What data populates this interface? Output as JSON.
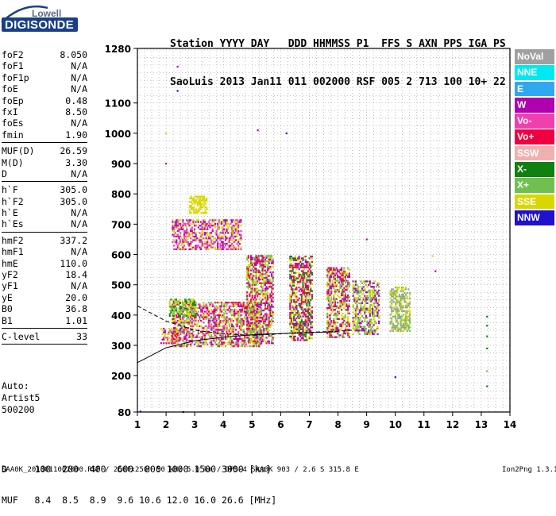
{
  "logo": {
    "brand_top": "Lowell",
    "brand_main": "DIGISONDE"
  },
  "header": {
    "row1": "Station YYYY DAY   DDD HHMMSS P1  FFS S AXN PPS IGA PS",
    "row2": "SaoLuis 2013 Jan11 011 002000 RSF 005 2 713 100 10+ 22"
  },
  "params": [
    {
      "label": "foF2",
      "value": "8.050"
    },
    {
      "label": "foF1",
      "value": "N/A"
    },
    {
      "label": "foF1p",
      "value": "N/A"
    },
    {
      "label": "foE",
      "value": "N/A"
    },
    {
      "label": "foEp",
      "value": "0.48"
    },
    {
      "label": "fxI",
      "value": "8.50"
    },
    {
      "label": "foEs",
      "value": "N/A"
    },
    {
      "label": "fmin",
      "value": "1.90"
    },
    {
      "label": "MUF(D)",
      "value": "26.59"
    },
    {
      "label": "M(D)",
      "value": "3.30"
    },
    {
      "label": "D",
      "value": "N/A"
    },
    {
      "label": "h`F",
      "value": "305.0"
    },
    {
      "label": "h`F2",
      "value": "305.0"
    },
    {
      "label": "h`E",
      "value": "N/A"
    },
    {
      "label": "h`Es",
      "value": "N/A"
    },
    {
      "label": "hmF2",
      "value": "337.2"
    },
    {
      "label": "hmF1",
      "value": "N/A"
    },
    {
      "label": "hmE",
      "value": "110.0"
    },
    {
      "label": "yF2",
      "value": "18.4"
    },
    {
      "label": "yF1",
      "value": "N/A"
    },
    {
      "label": "yE",
      "value": "20.0"
    },
    {
      "label": "B0",
      "value": "36.8"
    },
    {
      "label": "B1",
      "value": "1.01"
    },
    {
      "label": "C-level",
      "value": "33"
    }
  ],
  "auto": {
    "line1": "Auto:",
    "line2": "Artist5",
    "line3": "500200"
  },
  "bottom_table": {
    "d_row": "D     100  200  400  600  800 1000 1500 3000 [km]",
    "muf_row": "MUF   8.4  8.5  8.9  9.6 10.6 12.0 16.0 26.6 [MHz]"
  },
  "footer": {
    "left": "SAA0K_2013011002000.RSF / 260fx256h 50 kHz 5.0 km / DPS-4 SAA0K 903 / 2.6 S 315.8 E",
    "right": "Ion2Png 1.3.17"
  },
  "legend": [
    {
      "label": "NoVal",
      "color": "#a0a0a0"
    },
    {
      "label": "NNE",
      "color": "#00e8f0"
    },
    {
      "label": "E",
      "color": "#30a8f0"
    },
    {
      "label": "W",
      "color": "#b000b0"
    },
    {
      "label": "Vo-",
      "color": "#f040b0"
    },
    {
      "label": "Vo+",
      "color": "#f00040"
    },
    {
      "label": "SSW",
      "color": "#f0b0b0"
    },
    {
      "label": "X-",
      "color": "#108010"
    },
    {
      "label": "X+",
      "color": "#70c050"
    },
    {
      "label": "SSE",
      "color": "#d8d800"
    },
    {
      "label": "NNW",
      "color": "#2010d0"
    }
  ],
  "chart_data": {
    "type": "scatter",
    "title": "",
    "xlabel": "",
    "ylabel": "",
    "xlim": [
      1,
      14
    ],
    "ylim": [
      80,
      1280
    ],
    "x_ticks": [
      1,
      2,
      3,
      4,
      5,
      6,
      7,
      8,
      9,
      10,
      11,
      12,
      13,
      14
    ],
    "y_ticks": [
      80,
      200,
      300,
      400,
      500,
      600,
      700,
      800,
      900,
      1000,
      1100,
      1280
    ],
    "x_tick_labels": [
      "1",
      "2",
      "3",
      "4",
      "5",
      "6",
      "7",
      "8",
      "9",
      "10",
      "11",
      "12",
      "13",
      "14"
    ],
    "y_tick_labels": [
      "80",
      "200",
      "300",
      "400",
      "500",
      "600",
      "700",
      "800",
      "900",
      "1000",
      "1100",
      "1280"
    ],
    "grid": true,
    "legend_position": "right",
    "echo_clusters": [
      {
        "x": [
          1.8,
          2.5
        ],
        "y": [
          310,
          360
        ],
        "mix": [
          "Vo+",
          "Vo-",
          "W",
          "SSE"
        ]
      },
      {
        "x": [
          2.2,
          5.3
        ],
        "y": [
          300,
          450
        ],
        "mix": [
          "Vo+",
          "Vo-",
          "W",
          "SSE",
          "X+"
        ]
      },
      {
        "x": [
          2.1,
          3.0
        ],
        "y": [
          400,
          460
        ],
        "mix": [
          "SSE",
          "X+",
          "X-"
        ]
      },
      {
        "x": [
          2.2,
          4.6
        ],
        "y": [
          620,
          720
        ],
        "mix": [
          "W",
          "Vo-",
          "SSE"
        ]
      },
      {
        "x": [
          2.8,
          3.4
        ],
        "y": [
          740,
          800
        ],
        "mix": [
          "SSE"
        ]
      },
      {
        "x": [
          4.8,
          5.7
        ],
        "y": [
          310,
          600
        ],
        "mix": [
          "SSE",
          "Vo+",
          "W",
          "X+"
        ]
      },
      {
        "x": [
          6.3,
          7.1
        ],
        "y": [
          320,
          600
        ],
        "mix": [
          "SSE",
          "Vo+",
          "W",
          "X-"
        ]
      },
      {
        "x": [
          7.6,
          8.4
        ],
        "y": [
          330,
          560
        ],
        "mix": [
          "SSE",
          "W",
          "Vo+",
          "X+"
        ]
      },
      {
        "x": [
          8.5,
          9.4
        ],
        "y": [
          340,
          520
        ],
        "mix": [
          "SSE",
          "W",
          "X+"
        ]
      },
      {
        "x": [
          9.8,
          10.5
        ],
        "y": [
          350,
          500
        ],
        "mix": [
          "X+",
          "SSE",
          "NoVal"
        ]
      }
    ],
    "sparse_points": [
      {
        "x": 2.4,
        "y": 1220,
        "color": "W"
      },
      {
        "x": 2.4,
        "y": 1140,
        "color": "NNW"
      },
      {
        "x": 2.0,
        "y": 1000,
        "color": "SSE"
      },
      {
        "x": 2.0,
        "y": 900,
        "color": "W"
      },
      {
        "x": 5.2,
        "y": 1010,
        "color": "W"
      },
      {
        "x": 6.2,
        "y": 1000,
        "color": "NNW"
      },
      {
        "x": 9.0,
        "y": 650,
        "color": "W"
      },
      {
        "x": 11.3,
        "y": 595,
        "color": "SSE"
      },
      {
        "x": 11.4,
        "y": 545,
        "color": "W"
      },
      {
        "x": 10.0,
        "y": 195,
        "color": "NNW"
      },
      {
        "x": 2.6,
        "y": 80,
        "color": "NNW"
      },
      {
        "x": 1.1,
        "y": 82,
        "color": "NNW"
      },
      {
        "x": 13.2,
        "y": 395,
        "color": "X-"
      },
      {
        "x": 13.2,
        "y": 365,
        "color": "X-"
      },
      {
        "x": 13.2,
        "y": 330,
        "color": "X-"
      },
      {
        "x": 13.2,
        "y": 290,
        "color": "X-"
      },
      {
        "x": 13.2,
        "y": 215,
        "color": "X+"
      },
      {
        "x": 13.2,
        "y": 165,
        "color": "X-"
      }
    ],
    "trace_solid": {
      "x": [
        1,
        2,
        3,
        4,
        5,
        6,
        7,
        8
      ],
      "y": [
        243,
        292,
        315,
        327,
        335,
        339,
        342,
        345
      ]
    },
    "trace_dashed": {
      "x": [
        1,
        2,
        3,
        4,
        5,
        6,
        7,
        8,
        8.5
      ],
      "y": [
        430,
        380,
        350,
        338,
        333,
        338,
        343,
        347,
        350
      ]
    }
  }
}
